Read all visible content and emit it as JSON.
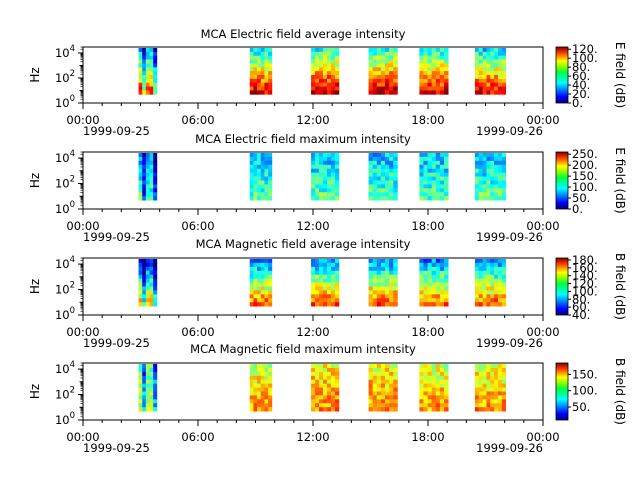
{
  "chart_data": [
    {
      "type": "heatmap",
      "title": "MCA  Electric field average intensity",
      "ylabel": "Hz",
      "colorbar_label": "E field (dB)",
      "colorbar_range": [
        0,
        125
      ],
      "colorbar_ticks": [
        "120.",
        "100.",
        "80.",
        "60.",
        "40.",
        "20.",
        "0."
      ],
      "colorbar_tick_values": [
        120,
        100,
        80,
        60,
        40,
        20,
        0
      ],
      "yticks": [
        {
          "base": "10",
          "exp": "0"
        },
        {
          "base": "10",
          "exp": "2"
        },
        {
          "base": "10",
          "exp": "4"
        }
      ],
      "ylim": [
        1,
        30000
      ],
      "yscale": "log",
      "xticks": [
        "00:00",
        "06:00",
        "12:00",
        "18:00",
        "00:00"
      ],
      "xdates": [
        "1999-09-25",
        "1999-09-26"
      ],
      "blocks": [
        {
          "start": 2.9,
          "end": 3.85,
          "level": 70
        },
        {
          "start": 8.7,
          "end": 9.85,
          "level": 80
        },
        {
          "start": 11.9,
          "end": 13.35,
          "level": 85
        },
        {
          "start": 14.9,
          "end": 16.4,
          "level": 85
        },
        {
          "start": 17.55,
          "end": 19.05,
          "level": 82
        },
        {
          "start": 20.45,
          "end": 22.05,
          "level": 78
        }
      ]
    },
    {
      "type": "heatmap",
      "title": "MCA  Electric field maximum intensity",
      "ylabel": "Hz",
      "colorbar_label": "E field (dB)",
      "colorbar_range": [
        0,
        260
      ],
      "colorbar_ticks": [
        "250.",
        "200.",
        "150.",
        "100.",
        "50.",
        "0."
      ],
      "colorbar_tick_values": [
        250,
        200,
        150,
        100,
        50,
        0
      ],
      "yticks": [
        {
          "base": "10",
          "exp": "0"
        },
        {
          "base": "10",
          "exp": "2"
        },
        {
          "base": "10",
          "exp": "4"
        }
      ],
      "ylim": [
        1,
        30000
      ],
      "yscale": "log",
      "xticks": [
        "00:00",
        "06:00",
        "12:00",
        "18:00",
        "00:00"
      ],
      "xdates": [
        "1999-09-25",
        "1999-09-26"
      ],
      "blocks": [
        {
          "start": 2.9,
          "end": 3.85,
          "level": 95
        },
        {
          "start": 8.7,
          "end": 9.85,
          "level": 100
        },
        {
          "start": 11.9,
          "end": 13.35,
          "level": 100
        },
        {
          "start": 14.9,
          "end": 16.4,
          "level": 100
        },
        {
          "start": 17.55,
          "end": 19.05,
          "level": 100
        },
        {
          "start": 20.45,
          "end": 22.05,
          "level": 100
        }
      ]
    },
    {
      "type": "heatmap",
      "title": "MCA  Magnetic field average intensity",
      "ylabel": "Hz",
      "colorbar_label": "B field (dB)",
      "colorbar_range": [
        40,
        185
      ],
      "colorbar_ticks": [
        "180.",
        "160.",
        "140.",
        "120.",
        "100.",
        "80.",
        "60.",
        "40."
      ],
      "colorbar_tick_values": [
        180,
        160,
        140,
        120,
        100,
        80,
        60,
        40
      ],
      "yticks": [
        {
          "base": "10",
          "exp": "0"
        },
        {
          "base": "10",
          "exp": "2"
        },
        {
          "base": "10",
          "exp": "4"
        }
      ],
      "ylim": [
        1,
        30000
      ],
      "yscale": "log",
      "xticks": [
        "00:00",
        "06:00",
        "12:00",
        "18:00",
        "00:00"
      ],
      "xdates": [
        "1999-09-25",
        "1999-09-26"
      ],
      "blocks": [
        {
          "start": 2.9,
          "end": 3.85,
          "level": 100
        },
        {
          "start": 8.7,
          "end": 9.85,
          "level": 115
        },
        {
          "start": 11.9,
          "end": 13.35,
          "level": 118
        },
        {
          "start": 14.9,
          "end": 16.4,
          "level": 118
        },
        {
          "start": 17.55,
          "end": 19.05,
          "level": 115
        },
        {
          "start": 20.45,
          "end": 22.05,
          "level": 115
        }
      ]
    },
    {
      "type": "heatmap",
      "title": "MCA  Magnetic field maximum intensity",
      "ylabel": "Hz",
      "colorbar_label": "B field (dB)",
      "colorbar_range": [
        10,
        185
      ],
      "colorbar_ticks": [
        "150.",
        "100.",
        "50."
      ],
      "colorbar_tick_values": [
        150,
        100,
        50
      ],
      "yticks": [
        {
          "base": "10",
          "exp": "0"
        },
        {
          "base": "10",
          "exp": "2"
        },
        {
          "base": "10",
          "exp": "4"
        }
      ],
      "ylim": [
        1,
        30000
      ],
      "yscale": "log",
      "xticks": [
        "00:00",
        "06:00",
        "12:00",
        "18:00",
        "00:00"
      ],
      "xdates": [
        "1999-09-25",
        "1999-09-26"
      ],
      "blocks": [
        {
          "start": 2.9,
          "end": 3.85,
          "level": 100
        },
        {
          "start": 8.7,
          "end": 9.85,
          "level": 125
        },
        {
          "start": 11.9,
          "end": 13.35,
          "level": 130
        },
        {
          "start": 14.9,
          "end": 16.4,
          "level": 130
        },
        {
          "start": 17.55,
          "end": 19.05,
          "level": 125
        },
        {
          "start": 20.45,
          "end": 22.05,
          "level": 125
        }
      ]
    }
  ]
}
